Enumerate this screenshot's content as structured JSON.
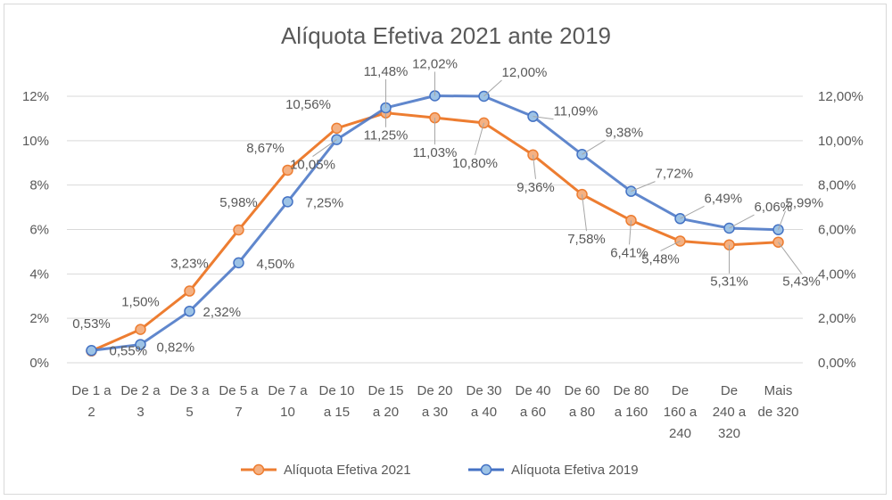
{
  "chart_data": {
    "type": "line",
    "title": "Alíquota Efetiva 2021 ante 2019",
    "categories": [
      [
        "De 1 a",
        "2"
      ],
      [
        "De 2 a",
        "3"
      ],
      [
        "De 3 a",
        "5"
      ],
      [
        "De 5 a",
        "7"
      ],
      [
        "De 7 a",
        "10"
      ],
      [
        "De 10",
        "a 15"
      ],
      [
        "De 15",
        "a 20"
      ],
      [
        "De 20",
        "a 30"
      ],
      [
        "De 30",
        "a 40"
      ],
      [
        "De 40",
        "a 60"
      ],
      [
        "De 60",
        "a 80"
      ],
      [
        "De 80",
        "a 160"
      ],
      [
        "De",
        "160 a",
        "240"
      ],
      [
        "De",
        "240 a",
        "320"
      ],
      [
        "Mais",
        "de 320"
      ]
    ],
    "series": [
      {
        "name": "Alíquota Efetiva 2021",
        "color": "#ed7d31",
        "marker_fill": "#f4b183",
        "axis": "left",
        "values": [
          0.53,
          1.5,
          3.23,
          5.98,
          8.67,
          10.56,
          11.25,
          11.03,
          10.8,
          9.36,
          7.58,
          6.41,
          5.48,
          5.31,
          5.43
        ],
        "labels": [
          "0,53%",
          "1,50%",
          "3,23%",
          "5,98%",
          "8,67%",
          "10,56%",
          "11,25%",
          "11,03%",
          "10,80%",
          "9,36%",
          "7,58%",
          "6,41%",
          "5,48%",
          "5,31%",
          "5,43%"
        ]
      },
      {
        "name": "Alíquota Efetiva 2019",
        "color": "#4472c4",
        "marker_fill": "#9dc3e6",
        "axis": "right",
        "values": [
          0.55,
          0.82,
          2.32,
          4.5,
          7.25,
          10.05,
          11.48,
          12.02,
          12.0,
          11.09,
          9.38,
          7.72,
          6.49,
          6.06,
          5.99
        ],
        "labels": [
          "0,55%",
          "0,82%",
          "2,32%",
          "4,50%",
          "7,25%",
          "10,05%",
          "11,48%",
          "12,02%",
          "12,00%",
          "11,09%",
          "9,38%",
          "7,72%",
          "6,49%",
          "6,06%",
          "5,99%"
        ]
      }
    ],
    "y_left": {
      "min": 0,
      "max": 12,
      "step": 2,
      "tick_labels": [
        "0%",
        "2%",
        "4%",
        "6%",
        "8%",
        "10%",
        "12%"
      ]
    },
    "y_right": {
      "min": 0,
      "max": 12,
      "step": 2,
      "tick_labels": [
        "0,00%",
        "2,00%",
        "4,00%",
        "6,00%",
        "8,00%",
        "10,00%",
        "12,00%"
      ]
    },
    "grid": true,
    "legend": "bottom"
  }
}
